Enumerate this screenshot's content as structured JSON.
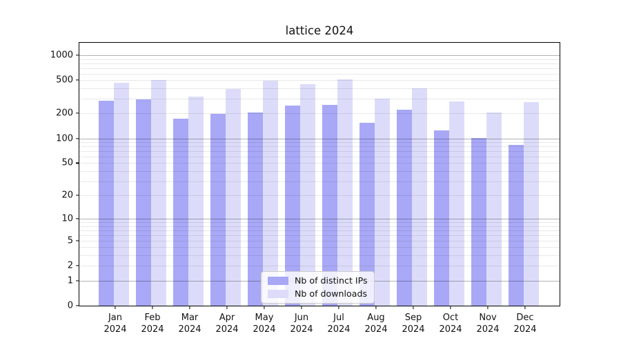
{
  "chart_data": {
    "type": "bar",
    "title": "lattice 2024",
    "year_label": "2024",
    "categories": [
      "Jan",
      "Feb",
      "Mar",
      "Apr",
      "May",
      "Jun",
      "Jul",
      "Aug",
      "Sep",
      "Oct",
      "Nov",
      "Dec"
    ],
    "series": [
      {
        "name": "Nb of distinct IPs",
        "color": "#a8a8f7",
        "values": [
          283,
          296,
          174,
          199,
          206,
          249,
          252,
          153,
          220,
          124,
          101,
          84
        ]
      },
      {
        "name": "Nb of downloads",
        "color": "#dcdcfa",
        "values": [
          465,
          505,
          318,
          391,
          496,
          451,
          515,
          299,
          401,
          280,
          207,
          275
        ]
      }
    ],
    "yscale": "log10(1+v)",
    "yticks": [
      0,
      1,
      2,
      5,
      10,
      20,
      50,
      100,
      200,
      500,
      1000
    ],
    "ylim": [
      0,
      1430
    ],
    "grid": "horizontal, major at powers of 10, faint minors",
    "legend_position": "inside plot, bottom center",
    "axis_color": "#000000",
    "major_grid_color": "#b3b3b3",
    "minor_grid_color": "#e8e8e8"
  }
}
